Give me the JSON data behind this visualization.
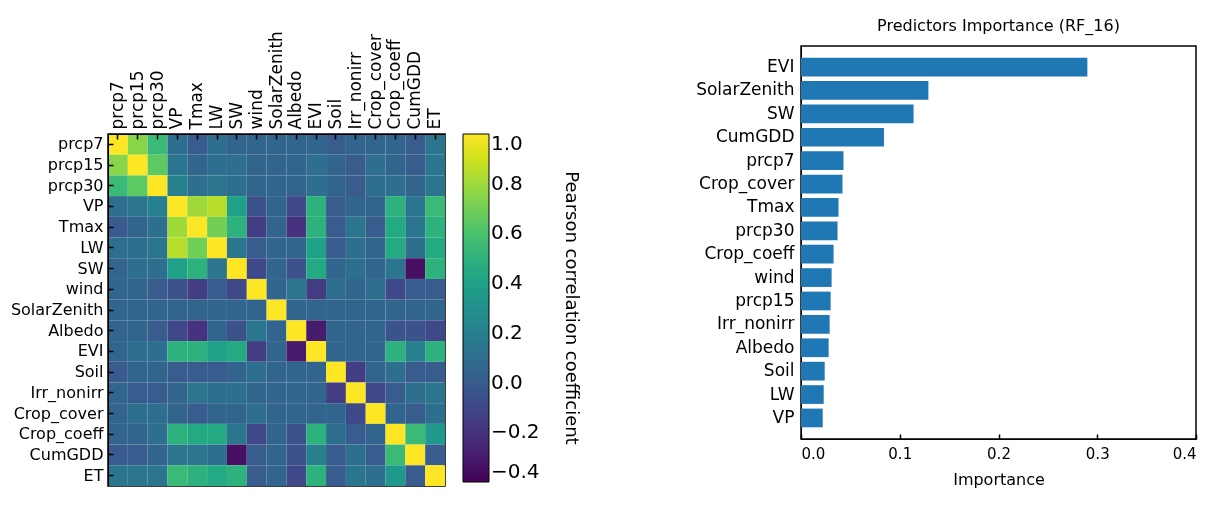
{
  "chart_data": [
    {
      "type": "heatmap",
      "clabel": "Pearson correlation coefficient",
      "categories": [
        "prcp7",
        "prcp15",
        "prcp30",
        "VP",
        "Tmax",
        "LW",
        "SW",
        "wind",
        "SolarZenith",
        "Albedo",
        "EVI",
        "Soil",
        "Irr_nonirr",
        "Crop_cover",
        "Crop_coeff",
        "CumGDD",
        "ET"
      ],
      "y_categories": [
        "prcp7",
        "prcp15",
        "prcp30",
        "VP",
        "Tmax",
        "LW",
        "SW",
        "wind",
        "SolarZenith",
        "Albedo",
        "EVI",
        "Soil",
        "Irr_nonirr",
        "Crop_cover",
        "Crop_coeff",
        "CumGDD",
        "ET"
      ],
      "cells": [
        [
          1,
          0.75,
          0.55,
          0.1,
          0,
          0.1,
          0.05,
          0.05,
          0.05,
          0.05,
          0.05,
          0,
          0.05,
          0.05,
          0.05,
          0,
          0.15
        ],
        [
          0.75,
          1,
          0.65,
          0.15,
          0.05,
          0.1,
          0.1,
          0.05,
          0.05,
          0.05,
          0.1,
          0.05,
          0,
          0.1,
          0.05,
          0,
          0.15
        ],
        [
          0.55,
          0.65,
          1,
          0.2,
          0.1,
          0.15,
          0.1,
          0.05,
          0.05,
          0.05,
          0.1,
          0.05,
          0,
          0.1,
          0.1,
          0.05,
          0.15
        ],
        [
          0.1,
          0.15,
          0.2,
          1,
          0.8,
          0.85,
          0.4,
          -0.05,
          0.05,
          -0.1,
          0.5,
          0,
          0.05,
          0.05,
          0.5,
          0.15,
          0.55
        ],
        [
          0,
          0.05,
          0.1,
          0.8,
          1,
          0.7,
          0.5,
          -0.15,
          0.05,
          -0.2,
          0.5,
          0,
          0.15,
          0,
          0.45,
          0.15,
          0.5
        ],
        [
          0.1,
          0.1,
          0.15,
          0.85,
          0.7,
          1,
          0.15,
          0,
          0.05,
          0.05,
          0.4,
          0,
          0.1,
          0.05,
          0.45,
          0.1,
          0.45
        ],
        [
          0.05,
          0.1,
          0.1,
          0.4,
          0.5,
          0.15,
          1,
          -0.1,
          0.05,
          -0.05,
          0.45,
          0.05,
          0.1,
          0.05,
          0.15,
          -0.35,
          0.5
        ],
        [
          0.05,
          0.05,
          0,
          -0.05,
          -0.15,
          0,
          -0.1,
          1,
          0.05,
          0.15,
          -0.15,
          0.1,
          0.05,
          0.1,
          -0.1,
          0,
          0
        ],
        [
          0.05,
          0.05,
          0.05,
          0.05,
          0.05,
          0.05,
          0.05,
          0.05,
          1,
          0.05,
          0.05,
          0.05,
          0.05,
          0.05,
          0.05,
          0.05,
          0.05
        ],
        [
          0.05,
          0.05,
          0,
          -0.1,
          -0.2,
          0.05,
          -0.05,
          0.15,
          0.05,
          1,
          -0.3,
          0.05,
          0.05,
          0.05,
          -0.05,
          -0.05,
          -0.1
        ],
        [
          0.05,
          0.1,
          0.1,
          0.5,
          0.5,
          0.4,
          0.45,
          -0.15,
          0.05,
          -0.3,
          1,
          0.05,
          0.05,
          0.05,
          0.5,
          0.2,
          0.5
        ],
        [
          0,
          0.05,
          0.05,
          0,
          0,
          0,
          0.05,
          0.1,
          0.05,
          0.05,
          0.05,
          1,
          -0.15,
          0.05,
          0.1,
          0,
          0
        ],
        [
          0.05,
          0,
          0,
          0.05,
          0.15,
          0.1,
          0.1,
          0.05,
          0.05,
          0.05,
          0.05,
          -0.15,
          1,
          -0.1,
          0,
          0.1,
          0.15
        ],
        [
          0.05,
          0.1,
          0.1,
          0.05,
          0,
          0.05,
          0.05,
          0.1,
          0.05,
          0.05,
          0.05,
          0.05,
          -0.1,
          1,
          0.05,
          0,
          0.1
        ],
        [
          0.05,
          0.05,
          0.1,
          0.5,
          0.45,
          0.45,
          0.15,
          -0.1,
          0.05,
          -0.05,
          0.5,
          0.1,
          0,
          0.05,
          1,
          0.55,
          0.35
        ],
        [
          0,
          0,
          0.05,
          0.15,
          0.15,
          0.1,
          -0.35,
          0,
          0.05,
          -0.05,
          0.2,
          0,
          0.1,
          0,
          0.55,
          1,
          0
        ],
        [
          0.15,
          0.15,
          0.15,
          0.55,
          0.5,
          0.45,
          0.5,
          0,
          0.05,
          -0.1,
          0.5,
          0,
          0.15,
          0.1,
          0.35,
          0,
          1
        ]
      ],
      "clim": [
        -0.4,
        1.0
      ],
      "cticks": [
        -0.4,
        -0.2,
        {
          "value": 0,
          "label": "0.0"
        },
        0.2,
        0.4,
        0.6,
        0.8,
        {
          "value": 1,
          "label": "1.0"
        }
      ]
    },
    {
      "type": "bar",
      "orientation": "horizontal",
      "title": "Predictors Importance (RF_16)",
      "xlabel": "Importance",
      "categories": [
        "EVI",
        "SolarZenith",
        "SW",
        "CumGDD",
        "prcp7",
        "Crop_cover",
        "Tmax",
        "prcp30",
        "Crop_coeff",
        "wind",
        "prcp15",
        "Irr_nonirr",
        "Albedo",
        "Soil",
        "LW",
        "VP"
      ],
      "values": [
        0.29,
        0.129,
        0.114,
        0.084,
        0.043,
        0.042,
        0.038,
        0.037,
        0.033,
        0.031,
        0.03,
        0.029,
        0.028,
        0.024,
        0.023,
        0.022
      ],
      "color": "#1f77b4",
      "xlim": [
        0,
        0.4
      ],
      "xticks": [
        {
          "value": 0,
          "label": "0.0"
        },
        0.1,
        0.2,
        0.3,
        0.4
      ]
    }
  ]
}
